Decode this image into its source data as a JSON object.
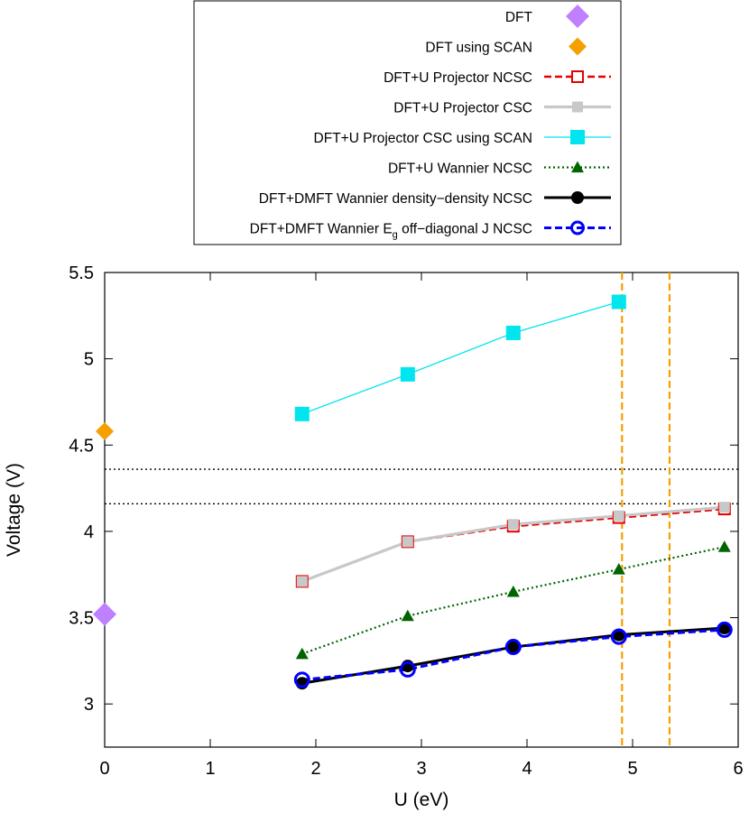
{
  "chart_data": {
    "type": "line",
    "xlabel": "U (eV)",
    "ylabel": "Voltage (V)",
    "xlim": [
      0,
      6
    ],
    "ylim": [
      2.75,
      5.5
    ],
    "x_ticks": [
      "0",
      "1",
      "2",
      "3",
      "4",
      "5",
      "6"
    ],
    "y_ticks": [
      "3",
      "3.5",
      "4",
      "4.5",
      "5",
      "5.5"
    ],
    "x_tick_values": [
      0,
      1,
      2,
      3,
      4,
      5,
      6
    ],
    "y_tick_values": [
      3,
      3.5,
      4,
      4.5,
      5,
      5.5
    ],
    "grid": false,
    "legend_position": "top-outside",
    "series": [
      {
        "name": "DFT",
        "color": "#bf80ff",
        "marker": "diamond",
        "line": "none",
        "points": [
          [
            0,
            3.52
          ]
        ]
      },
      {
        "name": "DFT using SCAN",
        "color": "#f5a000",
        "marker": "diamond",
        "line": "none",
        "points": [
          [
            0,
            4.58
          ]
        ]
      },
      {
        "name": "DFT+U Projector NCSC",
        "color": "#e60000",
        "marker": "open-square",
        "line": "dashed",
        "points": [
          [
            1.87,
            3.71
          ],
          [
            2.87,
            3.94
          ],
          [
            3.87,
            4.03
          ],
          [
            4.87,
            4.08
          ],
          [
            5.87,
            4.13
          ]
        ]
      },
      {
        "name": "DFT+U Projector CSC",
        "color": "#c8c8c8",
        "marker": "filled-square",
        "line": "solid",
        "points": [
          [
            1.87,
            3.71
          ],
          [
            2.87,
            3.94
          ],
          [
            3.87,
            4.04
          ],
          [
            4.87,
            4.09
          ],
          [
            5.87,
            4.14
          ]
        ]
      },
      {
        "name": "DFT+U Projector CSC using SCAN",
        "color": "#00e5ee",
        "marker": "filled-square",
        "line": "solid",
        "points": [
          [
            1.87,
            4.68
          ],
          [
            2.87,
            4.91
          ],
          [
            3.87,
            5.15
          ],
          [
            4.87,
            5.33
          ]
        ]
      },
      {
        "name": "DFT+U Wannier NCSC",
        "color": "#006400",
        "marker": "triangle",
        "line": "dotted",
        "points": [
          [
            1.87,
            3.29
          ],
          [
            2.87,
            3.51
          ],
          [
            3.87,
            3.65
          ],
          [
            4.87,
            3.78
          ],
          [
            5.87,
            3.91
          ]
        ]
      },
      {
        "name": "DFT+DMFT Wannier density−density NCSC",
        "color": "#000000",
        "marker": "filled-circle",
        "line": "solid",
        "points": [
          [
            1.87,
            3.12
          ],
          [
            2.87,
            3.22
          ],
          [
            3.87,
            3.33
          ],
          [
            4.87,
            3.4
          ],
          [
            5.87,
            3.44
          ]
        ]
      },
      {
        "name_prefix": "DFT+DMFT Wannier E",
        "name_sub": "g",
        "name_suffix": " off−diagonal J NCSC",
        "color": "#0000ff",
        "marker": "open-circle",
        "line": "dashed",
        "points": [
          [
            1.87,
            3.14
          ],
          [
            2.87,
            3.2
          ],
          [
            3.87,
            3.33
          ],
          [
            4.87,
            3.39
          ],
          [
            5.87,
            3.43
          ]
        ]
      }
    ],
    "reference_lines": {
      "horizontal": [
        {
          "y": 4.36,
          "color": "#000000",
          "style": "dotted"
        },
        {
          "y": 4.16,
          "color": "#000000",
          "style": "dotted"
        }
      ],
      "vertical": [
        {
          "x": 4.9,
          "color": "#f5a000",
          "style": "dashed"
        },
        {
          "x": 5.35,
          "color": "#f5a000",
          "style": "dashed"
        }
      ]
    }
  }
}
